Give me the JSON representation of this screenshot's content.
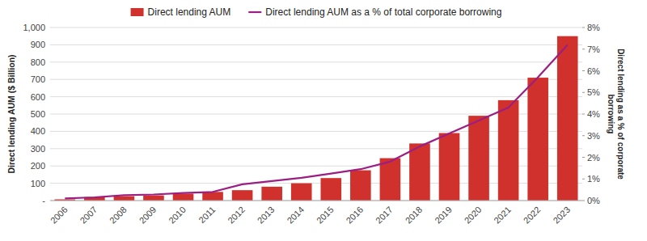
{
  "chart_data": {
    "type": "bar",
    "categories": [
      "2006",
      "2007",
      "2008",
      "2009",
      "2010",
      "2011",
      "2012",
      "2013",
      "2014",
      "2015",
      "2016",
      "2017",
      "2018",
      "2019",
      "2020",
      "2021",
      "2022",
      "2023"
    ],
    "series": [
      {
        "name": "Direct lending AUM",
        "type": "bar",
        "color": "#D0312D",
        "values": [
          7,
          20,
          25,
          30,
          40,
          50,
          60,
          80,
          100,
          130,
          175,
          245,
          330,
          390,
          490,
          580,
          710,
          950
        ]
      },
      {
        "name": "Direct lending AUM as a % of total corporate borrowing",
        "type": "line",
        "color": "#9B1F82",
        "axis": "y2",
        "values": [
          0.001,
          0.0015,
          0.0025,
          0.0028,
          0.0035,
          0.004,
          0.0075,
          0.009,
          0.0105,
          0.0125,
          0.0145,
          0.018,
          0.025,
          0.031,
          0.037,
          0.043,
          0.057,
          0.072
        ]
      }
    ],
    "y_label": "Direct lending AUM ($ Billion)",
    "y2_label": "Direct lending as a % of corporate\nborrowing",
    "ylim": [
      0,
      1000
    ],
    "yticks": [
      {
        "value": 0,
        "label": "-"
      },
      100,
      200,
      300,
      400,
      500,
      600,
      700,
      800,
      900,
      {
        "value": 1000,
        "label": "1,000"
      }
    ],
    "y2lim": [
      0,
      0.08
    ],
    "y2ticks": [
      {
        "value": 0,
        "label": "0%"
      },
      {
        "value": 0.01,
        "label": "1%"
      },
      {
        "value": 0.02,
        "label": "2%"
      },
      {
        "value": 0.03,
        "label": "3%"
      },
      {
        "value": 0.04,
        "label": "4%"
      },
      {
        "value": 0.05,
        "label": "5%"
      },
      {
        "value": 0.06,
        "label": "6%"
      },
      {
        "value": 0.07,
        "label": "7%"
      },
      {
        "value": 0.08,
        "label": "8%"
      }
    ],
    "grid": true,
    "legend": "top"
  }
}
